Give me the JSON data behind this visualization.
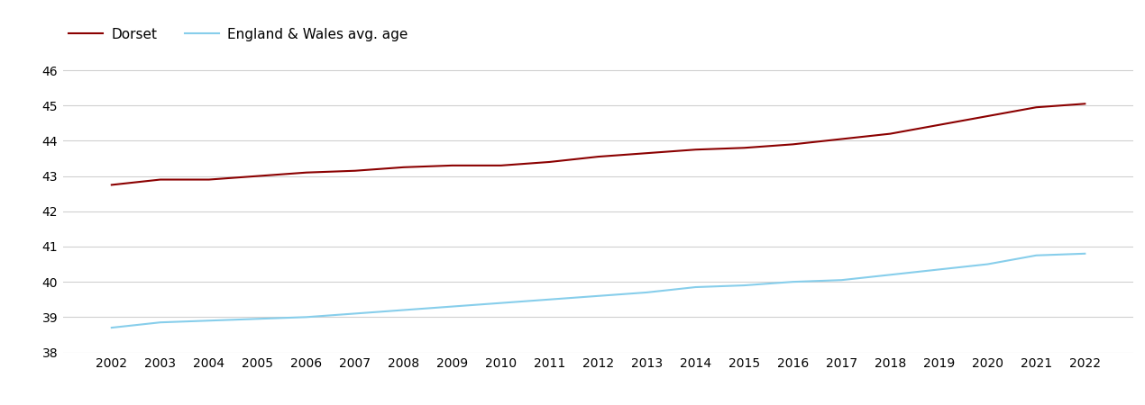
{
  "years": [
    2002,
    2003,
    2004,
    2005,
    2006,
    2007,
    2008,
    2009,
    2010,
    2011,
    2012,
    2013,
    2014,
    2015,
    2016,
    2017,
    2018,
    2019,
    2020,
    2021,
    2022
  ],
  "dorset": [
    42.75,
    42.9,
    42.9,
    43.0,
    43.1,
    43.15,
    43.25,
    43.3,
    43.3,
    43.4,
    43.55,
    43.65,
    43.75,
    43.8,
    43.9,
    44.05,
    44.2,
    44.45,
    44.7,
    44.95,
    45.05
  ],
  "england_wales": [
    38.7,
    38.85,
    38.9,
    38.95,
    39.0,
    39.1,
    39.2,
    39.3,
    39.4,
    39.5,
    39.6,
    39.7,
    39.85,
    39.9,
    40.0,
    40.05,
    40.2,
    40.35,
    40.5,
    40.75,
    40.8
  ],
  "dorset_color": "#8B0000",
  "england_wales_color": "#87CEEB",
  "dorset_label": "Dorset",
  "england_wales_label": "England & Wales avg. age",
  "ylim": [
    38,
    46.5
  ],
  "yticks": [
    38,
    39,
    40,
    41,
    42,
    43,
    44,
    45,
    46
  ],
  "background_color": "#ffffff",
  "grid_color": "#d0d0d0",
  "line_width": 1.5,
  "legend_fontsize": 11,
  "tick_fontsize": 10
}
